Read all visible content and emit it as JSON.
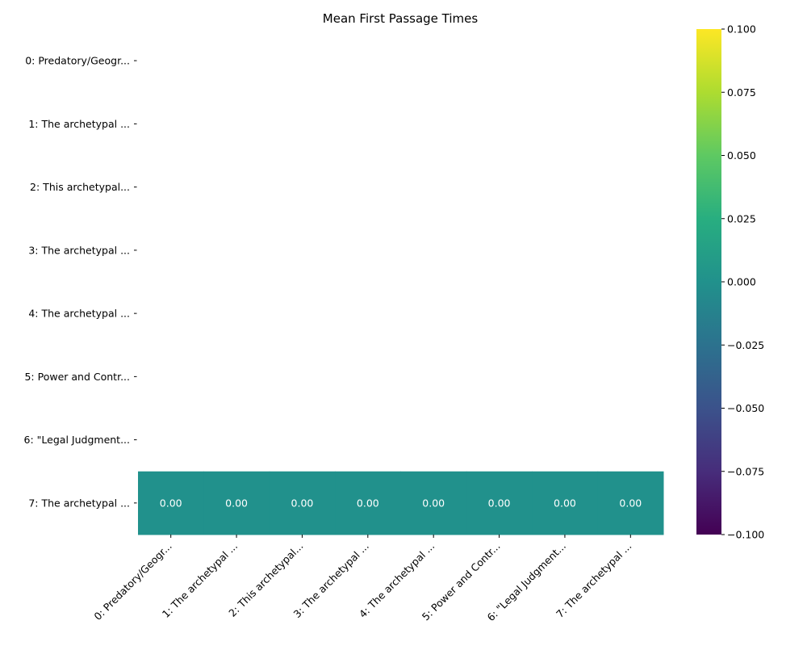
{
  "chart_data": {
    "type": "heatmap",
    "title": "Mean First Passage Times",
    "xlabel": "",
    "ylabel": "",
    "row_labels": [
      "0: Predatory/Geogr...",
      "1: The archetypal ...",
      "2: This archetypal...",
      "3: The archetypal ...",
      "4: The archetypal ...",
      "5: Power and Contr...",
      "6: \"Legal Judgment...",
      "7: The archetypal ..."
    ],
    "col_labels": [
      "0: Predatory/Geogr...",
      "1: The archetypal ...",
      "2: This archetypal...",
      "3: The archetypal ...",
      "4: The archetypal ...",
      "5: Power and Contr...",
      "6: \"Legal Judgment...",
      "7: The archetypal ..."
    ],
    "values": [
      [
        null,
        null,
        null,
        null,
        null,
        null,
        null,
        null
      ],
      [
        null,
        null,
        null,
        null,
        null,
        null,
        null,
        null
      ],
      [
        null,
        null,
        null,
        null,
        null,
        null,
        null,
        null
      ],
      [
        null,
        null,
        null,
        null,
        null,
        null,
        null,
        null
      ],
      [
        null,
        null,
        null,
        null,
        null,
        null,
        null,
        null
      ],
      [
        null,
        null,
        null,
        null,
        null,
        null,
        null,
        null
      ],
      [
        null,
        null,
        null,
        null,
        null,
        null,
        null,
        null
      ],
      [
        0.0,
        0.0,
        0.0,
        0.0,
        0.0,
        0.0,
        0.0,
        0.0
      ]
    ],
    "annotations": [
      [
        null,
        null,
        null,
        null,
        null,
        null,
        null,
        null
      ],
      [
        null,
        null,
        null,
        null,
        null,
        null,
        null,
        null
      ],
      [
        null,
        null,
        null,
        null,
        null,
        null,
        null,
        null
      ],
      [
        null,
        null,
        null,
        null,
        null,
        null,
        null,
        null
      ],
      [
        null,
        null,
        null,
        null,
        null,
        null,
        null,
        null
      ],
      [
        null,
        null,
        null,
        null,
        null,
        null,
        null,
        null
      ],
      [
        null,
        null,
        null,
        null,
        null,
        null,
        null,
        null
      ],
      [
        "0.00",
        "0.00",
        "0.00",
        "0.00",
        "0.00",
        "0.00",
        "0.00",
        "0.00"
      ]
    ],
    "colorbar": {
      "colormap": "viridis",
      "vmin": -0.1,
      "vmax": 0.1,
      "ticks": [
        -0.1,
        -0.075,
        -0.05,
        -0.025,
        0.0,
        0.025,
        0.05,
        0.075,
        0.1
      ],
      "tick_labels": [
        "−0.100",
        "−0.075",
        "−0.050",
        "−0.025",
        "0.000",
        "0.025",
        "0.050",
        "0.075",
        "0.100"
      ]
    },
    "grid": false,
    "legend": "none",
    "colors": {
      "cell": "#21918c",
      "annotation_text": "#ffffff",
      "text": "#000000"
    }
  }
}
